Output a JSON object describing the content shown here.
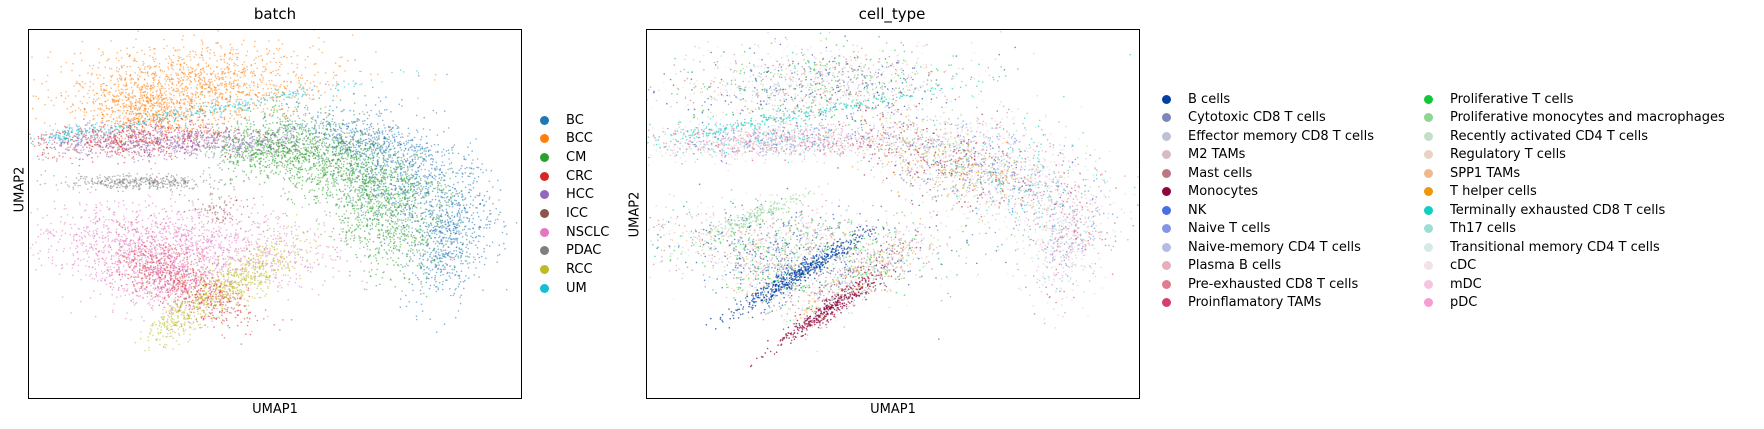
{
  "chart_data": [
    {
      "type": "scatter",
      "title": "batch",
      "xlabel": "UMAP1",
      "ylabel": "UMAP2",
      "grid": false,
      "legend_position": "right",
      "legend_entries": [
        {
          "label": "BC",
          "color": "#1f77b4"
        },
        {
          "label": "BCC",
          "color": "#ff7f0e"
        },
        {
          "label": "CM",
          "color": "#2ca02c"
        },
        {
          "label": "CRC",
          "color": "#d62728"
        },
        {
          "label": "HCC",
          "color": "#9467bd"
        },
        {
          "label": "ICC",
          "color": "#8c564b"
        },
        {
          "label": "NSCLC",
          "color": "#e377c2"
        },
        {
          "label": "PDAC",
          "color": "#7f7f7f"
        },
        {
          "label": "RCC",
          "color": "#bcbd22"
        },
        {
          "label": "UM",
          "color": "#17becf"
        }
      ]
    },
    {
      "type": "scatter",
      "title": "cell_type",
      "xlabel": "UMAP1",
      "ylabel": "UMAP2",
      "grid": false,
      "legend_position": "right (two columns)",
      "legend_entries": [
        {
          "label": "B cells",
          "color": "#023fa5"
        },
        {
          "label": "Cytotoxic CD8 T cells",
          "color": "#7d87b9"
        },
        {
          "label": "Effector memory CD8 T cells",
          "color": "#bec1d4"
        },
        {
          "label": "M2 TAMs",
          "color": "#d6bcc0"
        },
        {
          "label": "Mast cells",
          "color": "#bb7784"
        },
        {
          "label": "Monocytes",
          "color": "#8e063b"
        },
        {
          "label": "NK",
          "color": "#4a6fe3"
        },
        {
          "label": "Naive T cells",
          "color": "#8595e1"
        },
        {
          "label": "Naive-memory CD4 T cells",
          "color": "#b5bbe3"
        },
        {
          "label": "Plasma B cells",
          "color": "#e6afb9"
        },
        {
          "label": "Pre-exhausted CD8 T cells",
          "color": "#e07b91"
        },
        {
          "label": "Proinflamatory TAMs",
          "color": "#d33f6a"
        },
        {
          "label": "Proliferative T cells",
          "color": "#11c638"
        },
        {
          "label": "Proliferative monocytes and macrophages",
          "color": "#8dd593"
        },
        {
          "label": "Recently activated CD4 T cells",
          "color": "#c6dec7"
        },
        {
          "label": "Regulatory T cells",
          "color": "#ead3c6"
        },
        {
          "label": "SPP1 TAMs",
          "color": "#f0b98d"
        },
        {
          "label": "T helper cells",
          "color": "#ef9708"
        },
        {
          "label": "Terminally exhausted CD8 T cells",
          "color": "#0fcfc0"
        },
        {
          "label": "Th17 cells",
          "color": "#9cded6"
        },
        {
          "label": "Transitional memory CD4 T cells",
          "color": "#d5eae7"
        },
        {
          "label": "cDC",
          "color": "#f3e1eb"
        },
        {
          "label": "mDC",
          "color": "#f6c4e1"
        },
        {
          "label": "pDC",
          "color": "#f79cd4"
        }
      ]
    }
  ]
}
